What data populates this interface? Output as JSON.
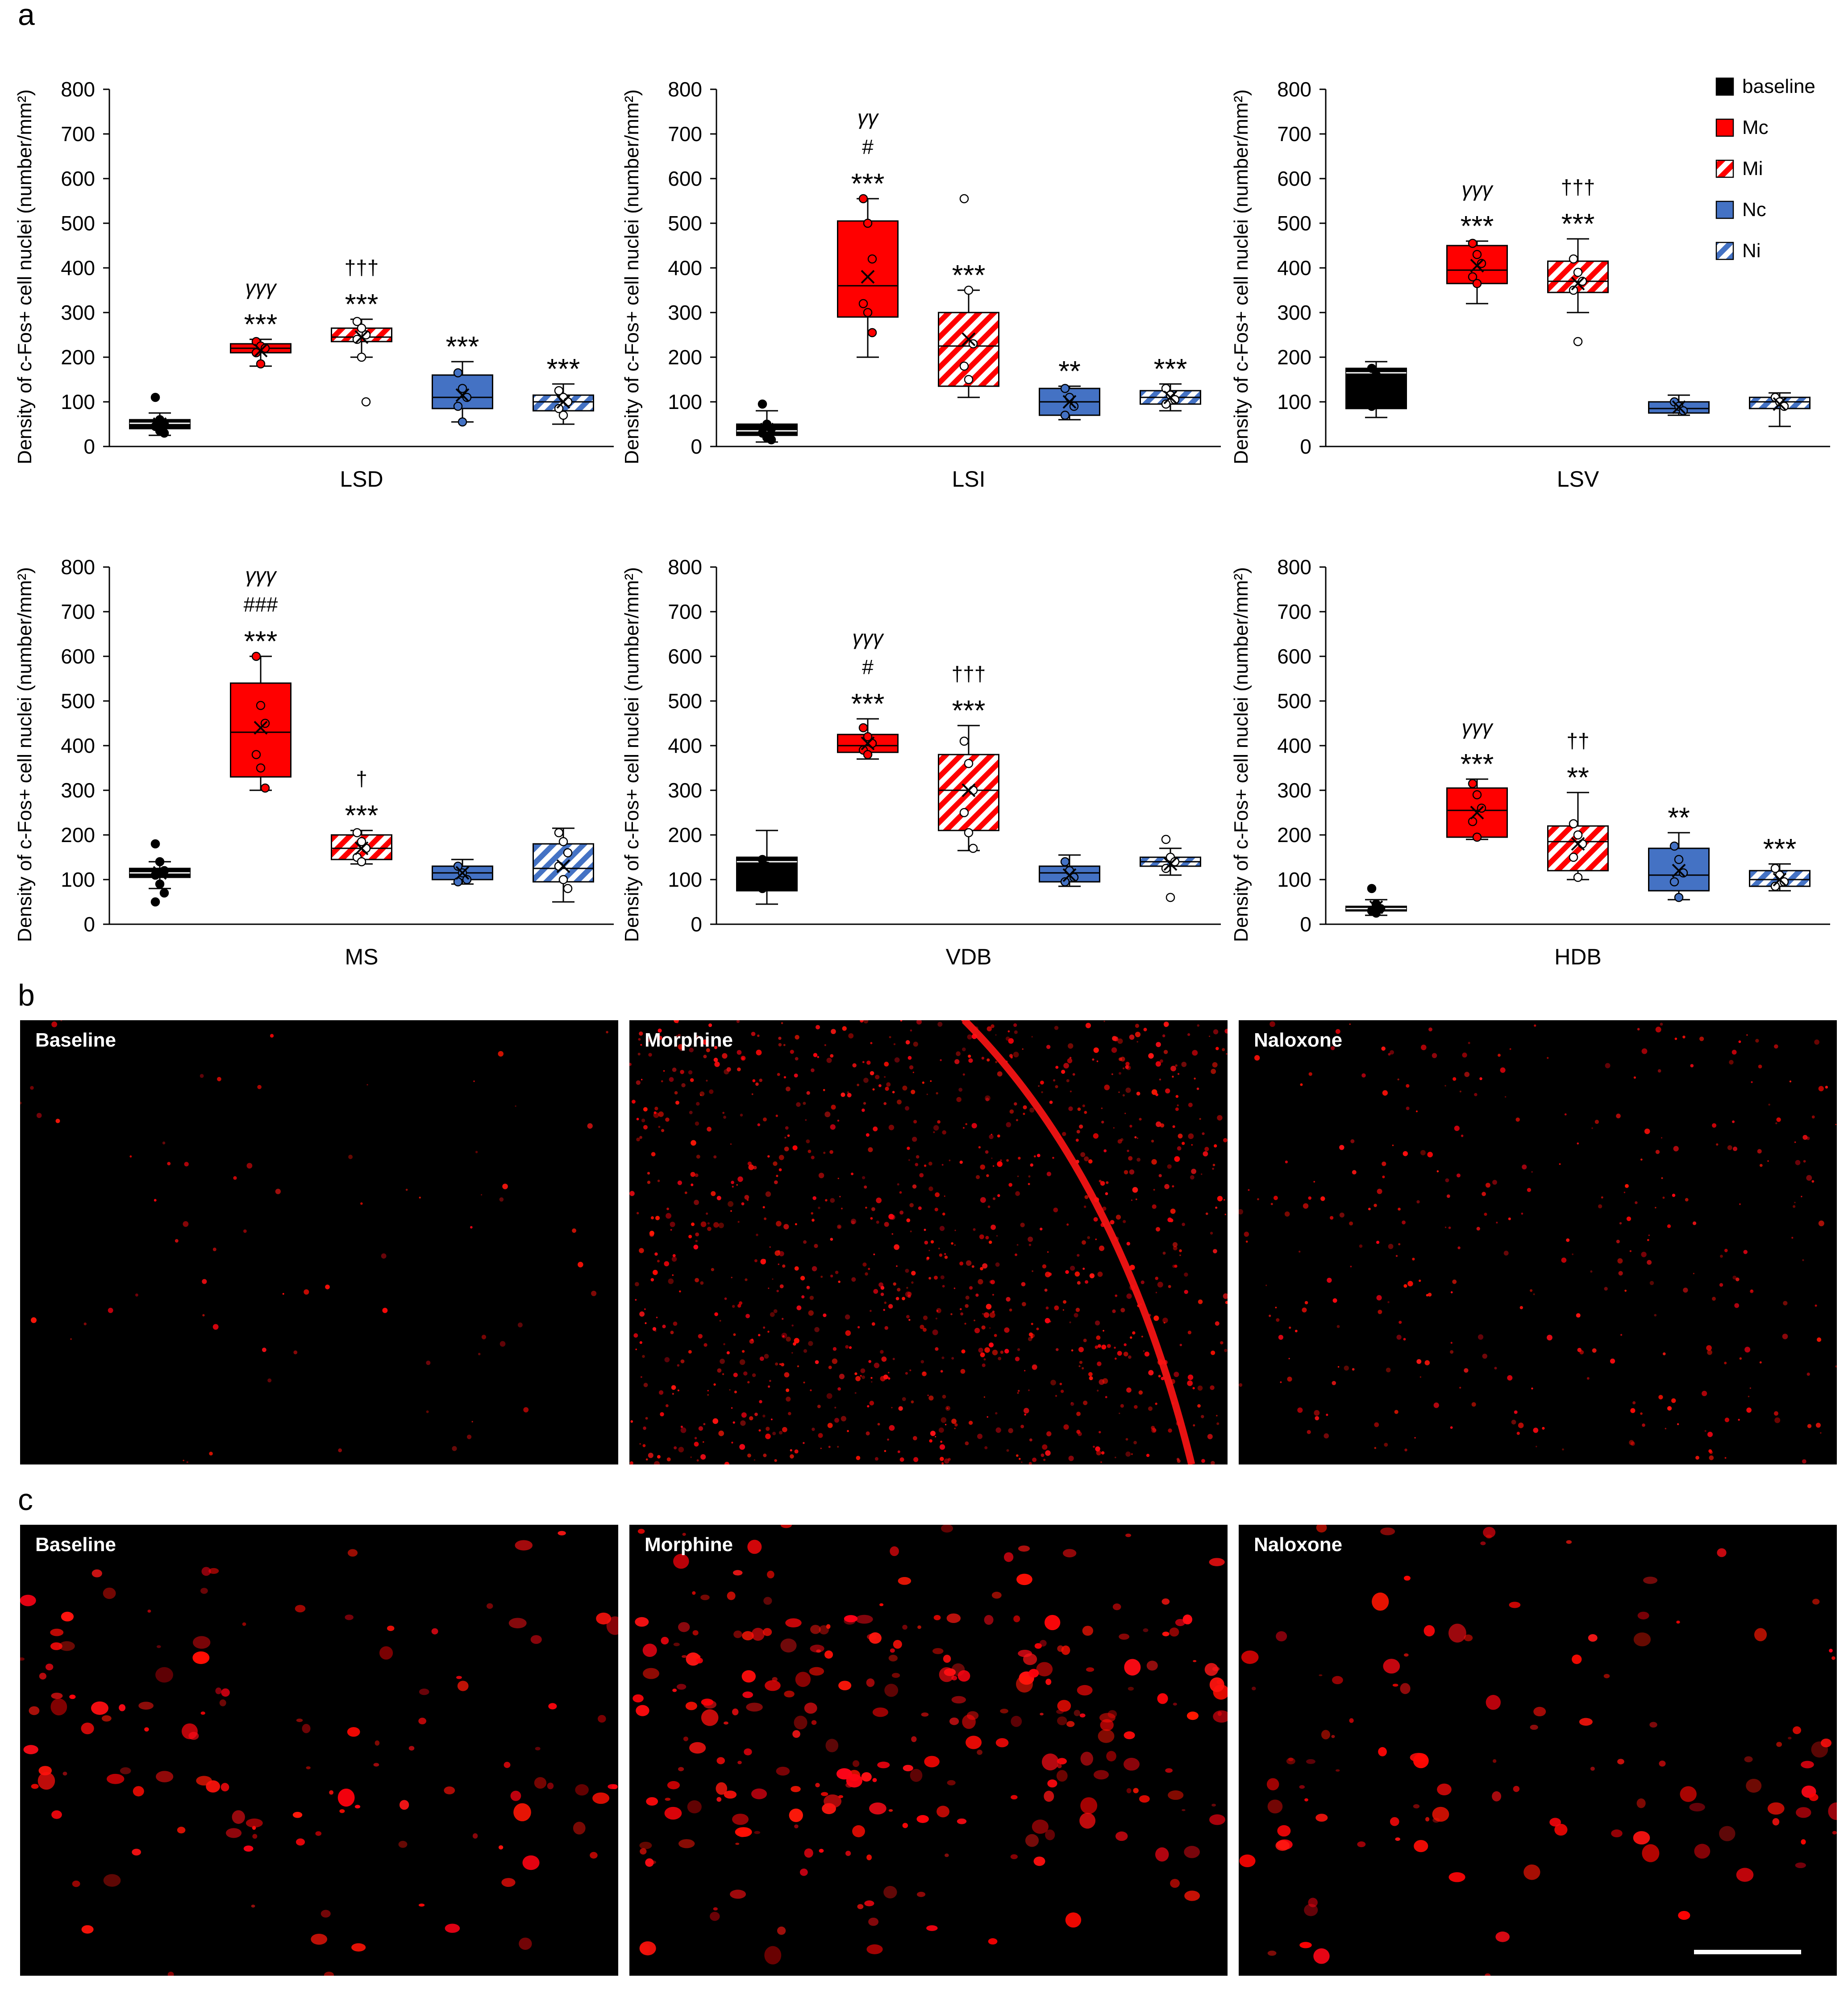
{
  "panel_labels": {
    "a": "a",
    "b": "b",
    "c": "c"
  },
  "legend": [
    {
      "key": "baseline",
      "label": "baseline",
      "color": "#000000",
      "hatch": false
    },
    {
      "key": "Mc",
      "label": "Mc",
      "color": "#ff0000",
      "hatch": false
    },
    {
      "key": "Mi",
      "label": "Mi",
      "color": "#ff0000",
      "hatch": true
    },
    {
      "key": "Nc",
      "label": "Nc",
      "color": "#4472c4",
      "hatch": false
    },
    {
      "key": "Ni",
      "label": "Ni",
      "color": "#4472c4",
      "hatch": true
    }
  ],
  "chart_data": [
    {
      "type": "box",
      "region": "LSD",
      "ylabel": "Density of c-Fos+ cell nuclei (number/mm²)",
      "ylim": [
        0,
        800
      ],
      "yticks": [
        0,
        100,
        200,
        300,
        400,
        500,
        600,
        700,
        800
      ],
      "groups": [
        {
          "key": "baseline",
          "q1": 40,
          "median": 52,
          "q3": 60,
          "mean": 50,
          "min": 25,
          "max": 75,
          "points": [
            110,
            60,
            50,
            45,
            35,
            30
          ],
          "annot": []
        },
        {
          "key": "Mc",
          "q1": 210,
          "median": 220,
          "q3": 230,
          "mean": 215,
          "min": 180,
          "max": 240,
          "points": [
            235,
            225,
            220,
            210,
            185
          ],
          "annot": [
            "γγγ",
            "***"
          ]
        },
        {
          "key": "Mi",
          "q1": 235,
          "median": 245,
          "q3": 265,
          "mean": 245,
          "min": 200,
          "max": 285,
          "points": [
            280,
            265,
            250,
            240,
            200,
            100
          ],
          "annot": [
            "†††",
            "***"
          ]
        },
        {
          "key": "Nc",
          "q1": 85,
          "median": 110,
          "q3": 160,
          "mean": 115,
          "min": 55,
          "max": 190,
          "points": [
            165,
            130,
            110,
            90,
            55
          ],
          "annot": [
            "***"
          ]
        },
        {
          "key": "Ni",
          "q1": 80,
          "median": 100,
          "q3": 115,
          "mean": 100,
          "min": 50,
          "max": 140,
          "points": [
            125,
            110,
            100,
            85,
            70
          ],
          "annot": [
            "***"
          ]
        }
      ]
    },
    {
      "type": "box",
      "region": "LSI",
      "ylabel": "Density of c-Fos+ cell nuclei (number/mm²)",
      "ylim": [
        0,
        800
      ],
      "yticks": [
        0,
        100,
        200,
        300,
        400,
        500,
        600,
        700,
        800
      ],
      "groups": [
        {
          "key": "baseline",
          "q1": 25,
          "median": 35,
          "q3": 50,
          "mean": 38,
          "min": 10,
          "max": 80,
          "points": [
            95,
            50,
            40,
            30,
            20,
            15
          ],
          "annot": []
        },
        {
          "key": "Mc",
          "q1": 290,
          "median": 360,
          "q3": 505,
          "mean": 380,
          "min": 200,
          "max": 555,
          "points": [
            555,
            500,
            420,
            320,
            300,
            255
          ],
          "annot": [
            "γγ",
            "#",
            "***"
          ]
        },
        {
          "key": "Mi",
          "q1": 135,
          "median": 225,
          "q3": 300,
          "mean": 240,
          "min": 110,
          "max": 350,
          "points": [
            555,
            350,
            230,
            180,
            150
          ],
          "annot": [
            "***"
          ]
        },
        {
          "key": "Nc",
          "q1": 70,
          "median": 100,
          "q3": 130,
          "mean": 100,
          "min": 60,
          "max": 135,
          "points": [
            130,
            110,
            90,
            70
          ],
          "annot": [
            "**"
          ]
        },
        {
          "key": "Ni",
          "q1": 95,
          "median": 110,
          "q3": 125,
          "mean": 110,
          "min": 80,
          "max": 140,
          "points": [
            130,
            115,
            105,
            95
          ],
          "annot": [
            "***"
          ]
        }
      ]
    },
    {
      "type": "box",
      "region": "LSV",
      "ylabel": "Density of c-Fos+ cell nuclei (number/mm²)",
      "ylim": [
        0,
        800
      ],
      "yticks": [
        0,
        100,
        200,
        300,
        400,
        500,
        600,
        700,
        800
      ],
      "groups": [
        {
          "key": "baseline",
          "q1": 85,
          "median": 165,
          "q3": 175,
          "mean": 120,
          "min": 65,
          "max": 190,
          "points": [
            175,
            160,
            100,
            90
          ],
          "annot": []
        },
        {
          "key": "Mc",
          "q1": 365,
          "median": 395,
          "q3": 450,
          "mean": 405,
          "min": 320,
          "max": 460,
          "points": [
            455,
            430,
            410,
            380,
            365
          ],
          "annot": [
            "γγγ",
            "***"
          ]
        },
        {
          "key": "Mi",
          "q1": 345,
          "median": 370,
          "q3": 415,
          "mean": 365,
          "min": 300,
          "max": 465,
          "points": [
            420,
            390,
            370,
            350,
            235
          ],
          "annot": [
            "†††",
            "***"
          ]
        },
        {
          "key": "Nc",
          "q1": 75,
          "median": 85,
          "q3": 100,
          "mean": 88,
          "min": 70,
          "max": 115,
          "points": [
            100,
            90,
            80
          ],
          "annot": []
        },
        {
          "key": "Ni",
          "q1": 85,
          "median": 100,
          "q3": 110,
          "mean": 95,
          "min": 45,
          "max": 120,
          "points": [
            110,
            100,
            90
          ],
          "annot": []
        }
      ]
    },
    {
      "type": "box",
      "region": "MS",
      "ylabel": "Density of c-Fos+ cell nuclei (number/mm²)",
      "ylim": [
        0,
        800
      ],
      "yticks": [
        0,
        100,
        200,
        300,
        400,
        500,
        600,
        700,
        800
      ],
      "groups": [
        {
          "key": "baseline",
          "q1": 105,
          "median": 115,
          "q3": 125,
          "mean": 115,
          "min": 80,
          "max": 140,
          "points": [
            180,
            140,
            120,
            110,
            90,
            70,
            50
          ],
          "annot": []
        },
        {
          "key": "Mc",
          "q1": 330,
          "median": 430,
          "q3": 540,
          "mean": 440,
          "min": 300,
          "max": 600,
          "points": [
            600,
            490,
            450,
            380,
            350,
            305
          ],
          "annot": [
            "γγγ",
            "###",
            "***"
          ]
        },
        {
          "key": "Mi",
          "q1": 145,
          "median": 170,
          "q3": 200,
          "mean": 170,
          "min": 135,
          "max": 210,
          "points": [
            205,
            185,
            170,
            150,
            140
          ],
          "annot": [
            "†",
            "***"
          ]
        },
        {
          "key": "Nc",
          "q1": 100,
          "median": 115,
          "q3": 130,
          "mean": 115,
          "min": 90,
          "max": 145,
          "points": [
            130,
            115,
            100,
            95
          ],
          "annot": []
        },
        {
          "key": "Ni",
          "q1": 95,
          "median": 125,
          "q3": 180,
          "mean": 130,
          "min": 50,
          "max": 215,
          "points": [
            205,
            185,
            160,
            130,
            100,
            80
          ],
          "annot": []
        }
      ]
    },
    {
      "type": "box",
      "region": "VDB",
      "ylabel": "Density of c-Fos+ cell nuclei (number/mm²)",
      "ylim": [
        0,
        800
      ],
      "yticks": [
        0,
        100,
        200,
        300,
        400,
        500,
        600,
        700,
        800
      ],
      "groups": [
        {
          "key": "baseline",
          "q1": 75,
          "median": 140,
          "q3": 150,
          "mean": 105,
          "min": 45,
          "max": 210,
          "points": [
            145,
            130,
            100,
            80
          ],
          "annot": []
        },
        {
          "key": "Mc",
          "q1": 385,
          "median": 400,
          "q3": 425,
          "mean": 405,
          "min": 370,
          "max": 460,
          "points": [
            440,
            420,
            405,
            390,
            380
          ],
          "annot": [
            "γγγ",
            "#",
            "***"
          ]
        },
        {
          "key": "Mi",
          "q1": 210,
          "median": 300,
          "q3": 380,
          "mean": 300,
          "min": 165,
          "max": 445,
          "points": [
            410,
            360,
            300,
            250,
            205,
            170
          ],
          "annot": [
            "†††",
            "***"
          ]
        },
        {
          "key": "Nc",
          "q1": 95,
          "median": 115,
          "q3": 130,
          "mean": 110,
          "min": 85,
          "max": 155,
          "points": [
            140,
            120,
            105,
            95
          ],
          "annot": []
        },
        {
          "key": "Ni",
          "q1": 130,
          "median": 140,
          "q3": 150,
          "mean": 135,
          "min": 110,
          "max": 170,
          "points": [
            190,
            150,
            140,
            125,
            60
          ],
          "annot": []
        }
      ]
    },
    {
      "type": "box",
      "region": "HDB",
      "ylabel": "Density of c-Fos+ cell nuclei (number/mm²)",
      "ylim": [
        0,
        800
      ],
      "yticks": [
        0,
        100,
        200,
        300,
        400,
        500,
        600,
        700,
        800
      ],
      "groups": [
        {
          "key": "baseline",
          "q1": 30,
          "median": 35,
          "q3": 40,
          "mean": 38,
          "min": 20,
          "max": 55,
          "points": [
            80,
            45,
            35,
            30,
            25
          ],
          "annot": []
        },
        {
          "key": "Mc",
          "q1": 195,
          "median": 255,
          "q3": 305,
          "mean": 250,
          "min": 190,
          "max": 325,
          "points": [
            315,
            290,
            260,
            230,
            195
          ],
          "annot": [
            "γγγ",
            "***"
          ]
        },
        {
          "key": "Mi",
          "q1": 120,
          "median": 185,
          "q3": 220,
          "mean": 180,
          "min": 100,
          "max": 295,
          "points": [
            225,
            200,
            180,
            150,
            105
          ],
          "annot": [
            "††",
            "**"
          ]
        },
        {
          "key": "Nc",
          "q1": 75,
          "median": 110,
          "q3": 170,
          "mean": 120,
          "min": 55,
          "max": 205,
          "points": [
            175,
            145,
            115,
            95,
            60
          ],
          "annot": [
            "**"
          ]
        },
        {
          "key": "Ni",
          "q1": 85,
          "median": 100,
          "q3": 120,
          "mean": 100,
          "min": 75,
          "max": 135,
          "points": [
            125,
            110,
            95,
            85
          ],
          "annot": [
            "***"
          ]
        }
      ]
    }
  ],
  "micrographs_b": [
    {
      "label": "Baseline",
      "density": 70,
      "seed": 11,
      "bright_edge": false
    },
    {
      "label": "Morphine",
      "density": 1100,
      "seed": 23,
      "bright_edge": true
    },
    {
      "label": "Naloxone",
      "density": 320,
      "seed": 37,
      "bright_edge": false
    }
  ],
  "micrographs_c": [
    {
      "label": "Baseline",
      "density": 120,
      "seed": 41,
      "scale_bar": false
    },
    {
      "label": "Morphine",
      "density": 260,
      "seed": 53,
      "scale_bar": false
    },
    {
      "label": "Naloxone",
      "density": 110,
      "seed": 67,
      "scale_bar": true
    }
  ]
}
